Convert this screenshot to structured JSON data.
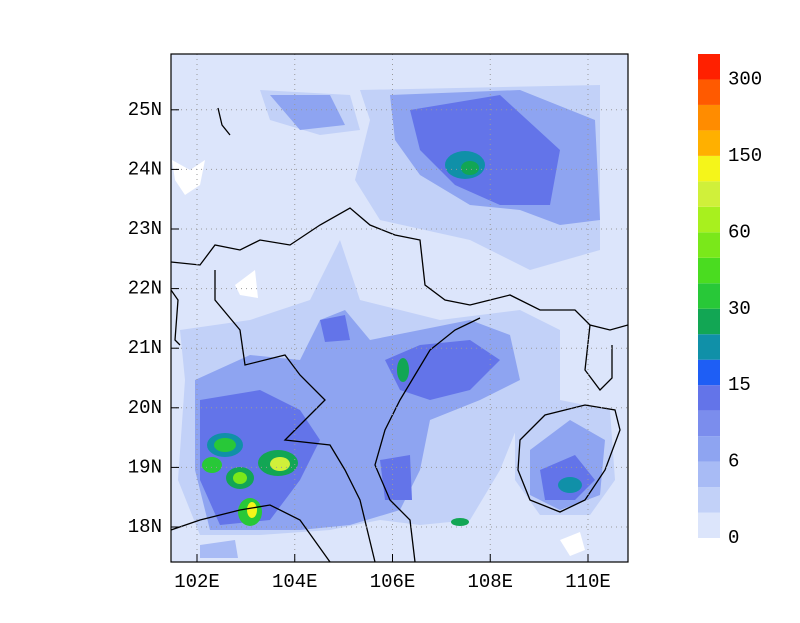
{
  "map": {
    "x_axis_labels": [
      "102E",
      "104E",
      "106E",
      "108E",
      "110E"
    ],
    "y_axis_labels": [
      "18N",
      "19N",
      "20N",
      "21N",
      "22N",
      "23N",
      "24N",
      "25N"
    ],
    "colorbar": {
      "labels": [
        "0",
        "6",
        "15",
        "30",
        "60",
        "150",
        "300"
      ],
      "colors": [
        "#dce5fb",
        "#c2d1f8",
        "#a8bbf5",
        "#8ea4f1",
        "#7b8ded",
        "#6374e9",
        "#1e5ef5",
        "#1090a8",
        "#12a654",
        "#28c838",
        "#4adc20",
        "#7ae81a",
        "#a8f01e",
        "#d0f03a",
        "#f5f51a",
        "#ffb000",
        "#ff8c00",
        "#ff5a00",
        "#ff2000"
      ]
    }
  }
}
